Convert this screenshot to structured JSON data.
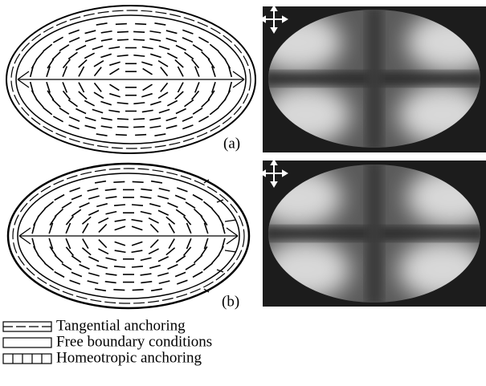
{
  "panels": [
    {
      "label": "(a)"
    },
    {
      "label": "(b)"
    }
  ],
  "legend": [
    {
      "label": "Tangential anchoring"
    },
    {
      "label": "Free boundary conditions"
    },
    {
      "label": "Homeotropic anchoring"
    }
  ]
}
